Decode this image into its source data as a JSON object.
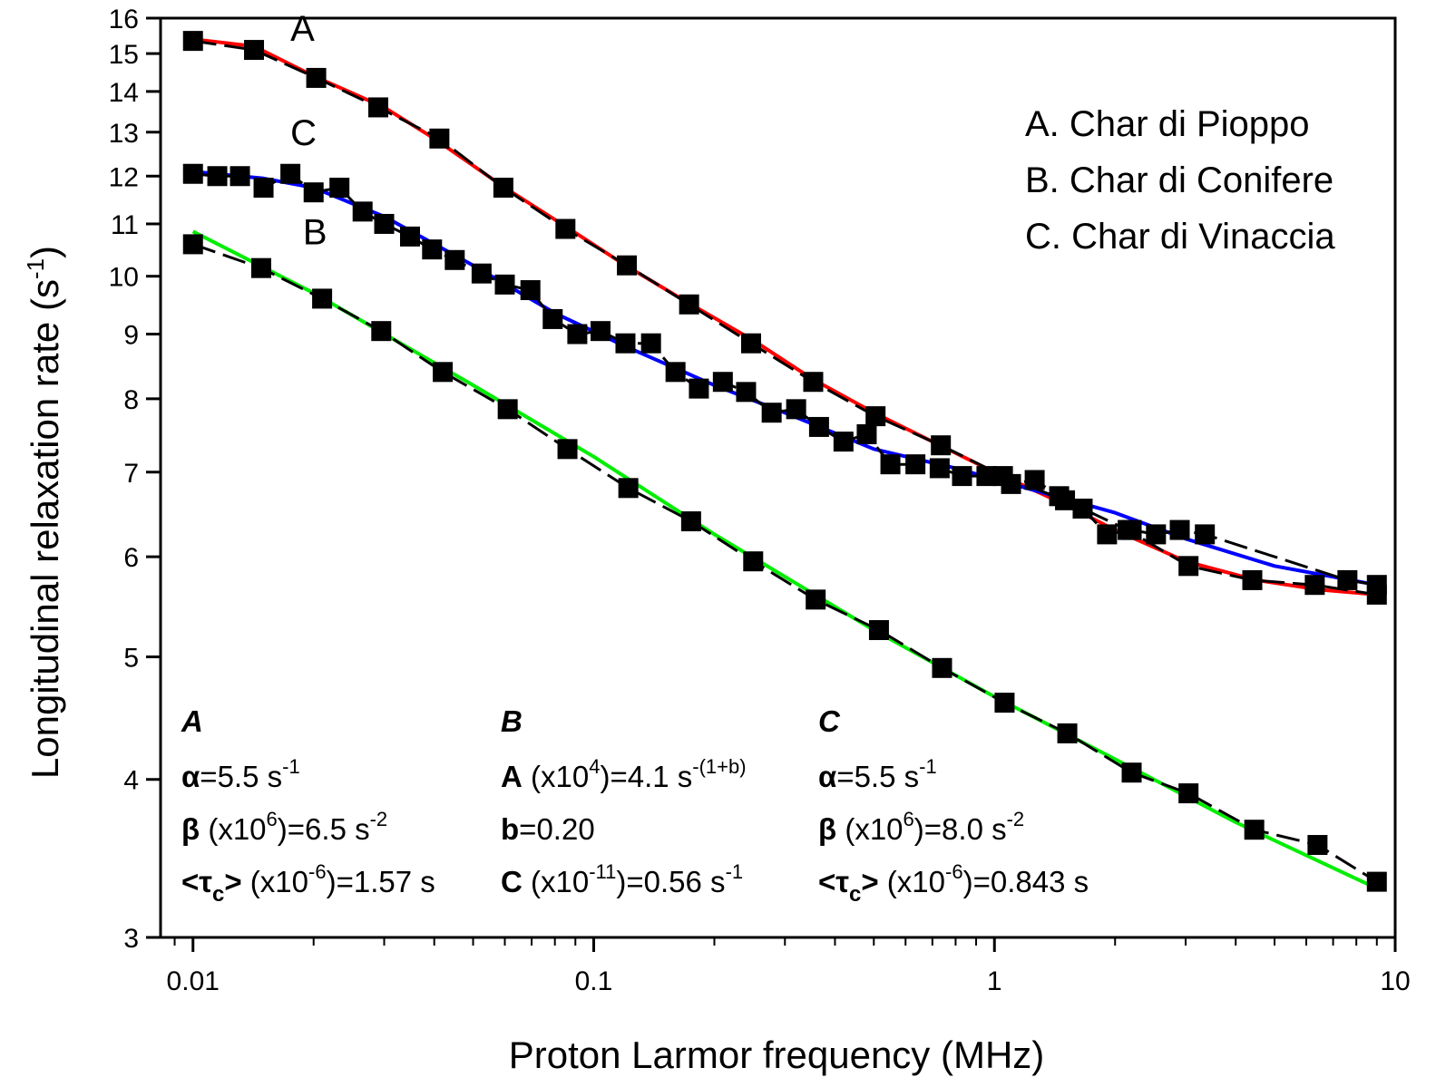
{
  "chart_data": {
    "type": "scatter",
    "xlabel": "Proton Larmor frequency (MHz)",
    "ylabel": {
      "main": "Longitudinal relaxation rate (s",
      "sup": "-1",
      "end": ")"
    },
    "x_scale": "log",
    "y_scale": "log",
    "xlim": [
      0.0083,
      10
    ],
    "ylim": [
      3,
      16
    ],
    "x_ticks": [
      0.01,
      0.1,
      1,
      10
    ],
    "x_tick_labels": [
      "0.01",
      "0.1",
      "1",
      "10"
    ],
    "y_ticks": [
      3,
      4,
      5,
      6,
      7,
      8,
      9,
      10,
      11,
      12,
      13,
      14,
      15,
      16
    ],
    "y_tick_labels": [
      "3",
      "4",
      "5",
      "6",
      "7",
      "8",
      "9",
      "10",
      "11",
      "12",
      "13",
      "14",
      "15",
      "16"
    ],
    "grid": false,
    "legend_position": "top-right",
    "legend": [
      "A. Char di Pioppo",
      "B. Char di Conifere",
      "C. Char di Vinaccia"
    ],
    "series": [
      {
        "name": "A",
        "label_pos": [
          0.0175,
          15.35
        ],
        "marker": "square",
        "color": "#000000",
        "fit_color": "#ff0000",
        "points": [
          [
            0.01,
            15.35
          ],
          [
            0.0142,
            15.1
          ],
          [
            0.0203,
            14.35
          ],
          [
            0.029,
            13.6
          ],
          [
            0.0412,
            12.85
          ],
          [
            0.0595,
            11.75
          ],
          [
            0.085,
            10.9
          ],
          [
            0.121,
            10.2
          ],
          [
            0.173,
            9.5
          ],
          [
            0.247,
            8.85
          ],
          [
            0.353,
            8.25
          ],
          [
            0.505,
            7.75
          ],
          [
            0.735,
            7.35
          ],
          [
            1.05,
            6.95
          ],
          [
            1.5,
            6.65
          ],
          [
            2.15,
            6.3
          ],
          [
            3.05,
            5.9
          ],
          [
            4.4,
            5.75
          ],
          [
            6.3,
            5.7
          ],
          [
            9.0,
            5.6
          ]
        ],
        "fit": [
          [
            0.01,
            15.4
          ],
          [
            0.0142,
            15.2
          ],
          [
            0.02,
            14.4
          ],
          [
            0.03,
            13.6
          ],
          [
            0.04,
            12.85
          ],
          [
            0.06,
            11.75
          ],
          [
            0.085,
            10.95
          ],
          [
            0.12,
            10.2
          ],
          [
            0.17,
            9.55
          ],
          [
            0.25,
            8.9
          ],
          [
            0.35,
            8.3
          ],
          [
            0.5,
            7.8
          ],
          [
            0.7,
            7.4
          ],
          [
            1.0,
            7.0
          ],
          [
            1.5,
            6.6
          ],
          [
            2.0,
            6.3
          ],
          [
            3.0,
            5.95
          ],
          [
            4.5,
            5.75
          ],
          [
            6.5,
            5.65
          ],
          [
            9.0,
            5.6
          ]
        ]
      },
      {
        "name": "B",
        "label_pos": [
          0.0188,
          10.6
        ],
        "marker": "square",
        "color": "#000000",
        "fit_color": "#00ee00",
        "points": [
          [
            0.01,
            10.6
          ],
          [
            0.0148,
            10.15
          ],
          [
            0.021,
            9.6
          ],
          [
            0.0295,
            9.05
          ],
          [
            0.042,
            8.4
          ],
          [
            0.061,
            7.85
          ],
          [
            0.086,
            7.3
          ],
          [
            0.122,
            6.8
          ],
          [
            0.175,
            6.4
          ],
          [
            0.25,
            5.95
          ],
          [
            0.358,
            5.55
          ],
          [
            0.515,
            5.25
          ],
          [
            0.74,
            4.9
          ],
          [
            1.06,
            4.6
          ],
          [
            1.52,
            4.35
          ],
          [
            2.2,
            4.05
          ],
          [
            3.05,
            3.9
          ],
          [
            4.45,
            3.65
          ],
          [
            6.4,
            3.55
          ],
          [
            9.0,
            3.32
          ]
        ],
        "fit": [
          [
            0.01,
            10.85
          ],
          [
            0.02,
            9.7
          ],
          [
            0.05,
            8.2
          ],
          [
            0.1,
            7.2
          ],
          [
            0.2,
            6.25
          ],
          [
            0.5,
            5.25
          ],
          [
            1.0,
            4.65
          ],
          [
            2.0,
            4.15
          ],
          [
            4.0,
            3.7
          ],
          [
            9.0,
            3.28
          ]
        ]
      },
      {
        "name": "C",
        "label_pos": [
          0.0175,
          12.7
        ],
        "marker": "square",
        "color": "#000000",
        "fit_color": "#0000ff",
        "points": [
          [
            0.01,
            12.05
          ],
          [
            0.0115,
            12.0
          ],
          [
            0.0131,
            12.0
          ],
          [
            0.015,
            11.75
          ],
          [
            0.0175,
            12.05
          ],
          [
            0.02,
            11.65
          ],
          [
            0.0232,
            11.75
          ],
          [
            0.0265,
            11.25
          ],
          [
            0.03,
            11.0
          ],
          [
            0.0348,
            10.75
          ],
          [
            0.0395,
            10.5
          ],
          [
            0.045,
            10.3
          ],
          [
            0.0525,
            10.05
          ],
          [
            0.06,
            9.85
          ],
          [
            0.0695,
            9.75
          ],
          [
            0.079,
            9.25
          ],
          [
            0.091,
            9.0
          ],
          [
            0.104,
            9.05
          ],
          [
            0.12,
            8.85
          ],
          [
            0.139,
            8.85
          ],
          [
            0.16,
            8.4
          ],
          [
            0.183,
            8.15
          ],
          [
            0.21,
            8.25
          ],
          [
            0.24,
            8.1
          ],
          [
            0.278,
            7.8
          ],
          [
            0.32,
            7.85
          ],
          [
            0.365,
            7.6
          ],
          [
            0.42,
            7.4
          ],
          [
            0.48,
            7.5
          ],
          [
            0.55,
            7.1
          ],
          [
            0.635,
            7.1
          ],
          [
            0.73,
            7.05
          ],
          [
            0.83,
            6.95
          ],
          [
            0.955,
            6.95
          ],
          [
            1.1,
            6.85
          ],
          [
            1.26,
            6.9
          ],
          [
            1.45,
            6.7
          ],
          [
            1.66,
            6.55
          ],
          [
            1.91,
            6.25
          ],
          [
            2.2,
            6.3
          ],
          [
            2.53,
            6.25
          ],
          [
            2.9,
            6.3
          ],
          [
            3.35,
            6.25
          ],
          [
            7.6,
            5.75
          ],
          [
            9.0,
            5.7
          ]
        ],
        "fit": [
          [
            0.01,
            12.1
          ],
          [
            0.015,
            11.95
          ],
          [
            0.02,
            11.75
          ],
          [
            0.03,
            11.15
          ],
          [
            0.05,
            10.2
          ],
          [
            0.08,
            9.35
          ],
          [
            0.12,
            8.8
          ],
          [
            0.2,
            8.2
          ],
          [
            0.3,
            7.8
          ],
          [
            0.5,
            7.3
          ],
          [
            0.8,
            7.05
          ],
          [
            1.2,
            6.8
          ],
          [
            2.0,
            6.5
          ],
          [
            3.0,
            6.2
          ],
          [
            5.0,
            5.9
          ],
          [
            9.0,
            5.7
          ]
        ]
      }
    ],
    "annotations": [
      {
        "title": "A",
        "lines": [
          {
            "sym": "α",
            "pre": "",
            "sup1": "",
            "mid": "=5.5 s",
            "sup2": "-1"
          },
          {
            "sym": "β",
            "pre": " (x10",
            "sup1": "6",
            "mid": ")=6.5 s",
            "sup2": "-2"
          },
          {
            "sym": "<τ",
            "sub": "c",
            "sym2": ">",
            "pre": " (x10",
            "sup1": "-6",
            "mid": ")=1.57 s",
            "sup2": ""
          }
        ]
      },
      {
        "title": "B",
        "lines": [
          {
            "sym": "A",
            "pre": " (x10",
            "sup1": "4",
            "mid": ")=4.1 s",
            "sup2": "-(1+b)"
          },
          {
            "sym": "b",
            "pre": "",
            "sup1": "",
            "mid": "=0.20",
            "sup2": ""
          },
          {
            "sym": "C",
            "pre": " (x10",
            "sup1": "-11",
            "mid": ")=0.56 s",
            "sup2": "-1"
          }
        ]
      },
      {
        "title": "C",
        "lines": [
          {
            "sym": "α",
            "pre": "",
            "sup1": "",
            "mid": "=5.5 s",
            "sup2": "-1"
          },
          {
            "sym": "β",
            "pre": " (x10",
            "sup1": "6",
            "mid": ")=8.0 s",
            "sup2": "-2"
          },
          {
            "sym": "<τ",
            "sub": "c",
            "sym2": ">",
            "pre": " (x10",
            "sup1": "-6",
            "mid": ")=0.843 s",
            "sup2": ""
          }
        ]
      }
    ]
  }
}
